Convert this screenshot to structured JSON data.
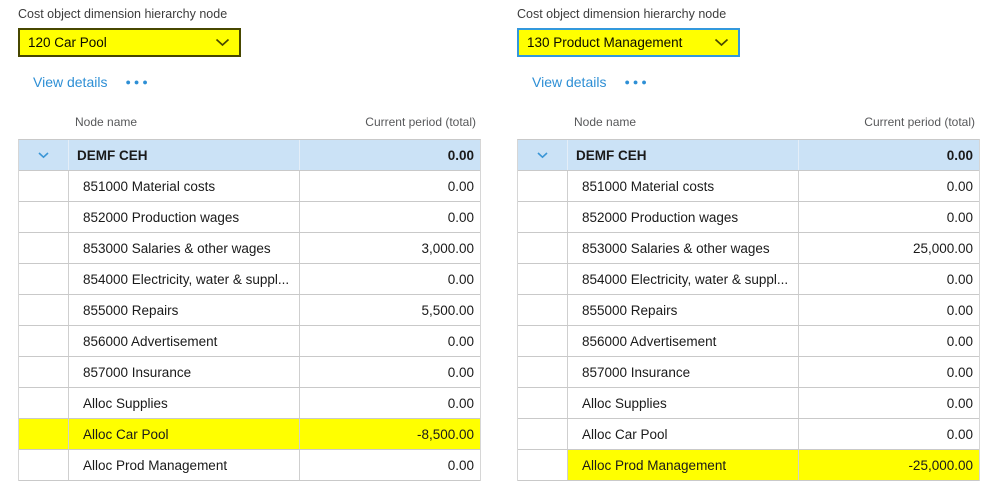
{
  "colors": {
    "highlight": "#ffff00",
    "parent_row_bg": "#cbe2f6",
    "link_blue": "#2e8fd5",
    "focus_border_blue": "#3398dc",
    "chevron_blue": "#3a96d6"
  },
  "panels": [
    {
      "field_label": "Cost object dimension hierarchy node",
      "dropdown": {
        "value": "120 Car Pool"
      },
      "view_details_label": "View details",
      "more_options_glyph": "●●●",
      "table": {
        "columns": {
          "name": "Node name",
          "value": "Current period (total)"
        },
        "rows": [
          {
            "name": "DEMF CEH",
            "value": "0.00",
            "parent": true
          },
          {
            "name": "851000 Material costs",
            "value": "0.00"
          },
          {
            "name": "852000 Production wages",
            "value": "0.00"
          },
          {
            "name": "853000 Salaries & other wages",
            "value": "3,000.00"
          },
          {
            "name": "854000 Electricity, water & suppl...",
            "value": "0.00"
          },
          {
            "name": "855000 Repairs",
            "value": "5,500.00"
          },
          {
            "name": "856000 Advertisement",
            "value": "0.00"
          },
          {
            "name": "857000 Insurance",
            "value": "0.00"
          },
          {
            "name": "Alloc Supplies",
            "value": "0.00"
          },
          {
            "name": "Alloc Car Pool",
            "value": "-8,500.00",
            "highlight": "row"
          },
          {
            "name": "Alloc Prod Management",
            "value": "0.00"
          }
        ]
      }
    },
    {
      "field_label": "Cost object dimension hierarchy node",
      "dropdown": {
        "value": "130 Product Management"
      },
      "view_details_label": "View details",
      "more_options_glyph": "●●●",
      "table": {
        "columns": {
          "name": "Node name",
          "value": "Current period (total)"
        },
        "rows": [
          {
            "name": "DEMF CEH",
            "value": "0.00",
            "parent": true
          },
          {
            "name": "851000 Material costs",
            "value": "0.00"
          },
          {
            "name": "852000 Production wages",
            "value": "0.00"
          },
          {
            "name": "853000 Salaries & other wages",
            "value": "25,000.00"
          },
          {
            "name": "854000 Electricity, water & suppl...",
            "value": "0.00"
          },
          {
            "name": "855000 Repairs",
            "value": "0.00"
          },
          {
            "name": "856000 Advertisement",
            "value": "0.00"
          },
          {
            "name": "857000 Insurance",
            "value": "0.00"
          },
          {
            "name": "Alloc Supplies",
            "value": "0.00"
          },
          {
            "name": "Alloc Car Pool",
            "value": "0.00"
          },
          {
            "name": "Alloc Prod Management",
            "value": "-25,000.00",
            "highlight": "cells"
          }
        ]
      }
    }
  ]
}
